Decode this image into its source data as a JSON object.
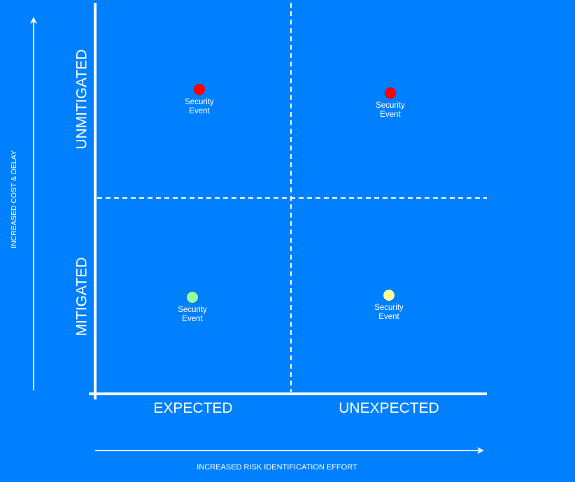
{
  "colors": {
    "background": "#0080FF",
    "lines": "#FFFFFF"
  },
  "y_axis_label": "INCREASED COST & DELAY",
  "x_axis_label": "INCREASED RISK IDENTIFICATION EFFORT",
  "rows": {
    "top": "UNMITIGATED",
    "bottom": "MITIGATED"
  },
  "columns": {
    "left": "EXPECTED",
    "right": "UNEXPECTED"
  },
  "events": [
    {
      "quadrant": "unmitigated-expected",
      "label": "Security\nEvent",
      "color": "#FF0000"
    },
    {
      "quadrant": "unmitigated-unexpected",
      "label": "Security\nEvent",
      "color": "#FF0000"
    },
    {
      "quadrant": "mitigated-expected",
      "label": "Security\nEvent",
      "color": "#99FF99"
    },
    {
      "quadrant": "mitigated-unexpected",
      "label": "Security\nEvent",
      "color": "#FFFF99"
    }
  ]
}
